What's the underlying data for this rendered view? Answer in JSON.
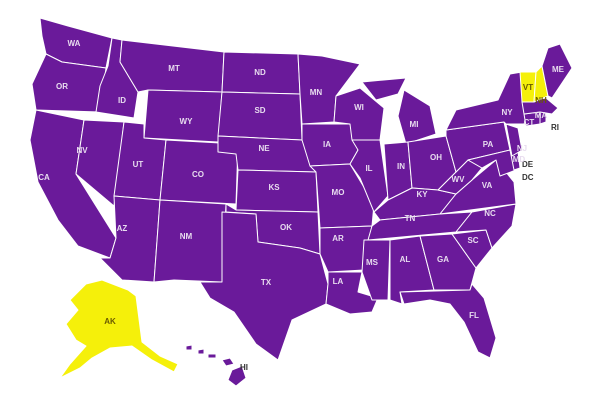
{
  "colors": {
    "default": "#6a1a9a",
    "highlight": "#f5f00a",
    "border": "#ffffff"
  },
  "highlighted": [
    "AK",
    "VT",
    "NH"
  ],
  "labels": {
    "WA": "WA",
    "OR": "OR",
    "CA": "CA",
    "ID": "ID",
    "NV": "NV",
    "MT": "MT",
    "WY": "WY",
    "UT": "UT",
    "AZ": "AZ",
    "CO": "CO",
    "NM": "NM",
    "ND": "ND",
    "SD": "SD",
    "NE": "NE",
    "KS": "KS",
    "OK": "OK",
    "TX": "TX",
    "MN": "MN",
    "IA": "IA",
    "MO": "MO",
    "AR": "AR",
    "LA": "LA",
    "WI": "WI",
    "IL": "IL",
    "MS": "MS",
    "MI": "MI",
    "IN": "IN",
    "KY": "KY",
    "TN": "TN",
    "AL": "AL",
    "OH": "OH",
    "GA": "GA",
    "FL": "FL",
    "SC": "SC",
    "NC": "NC",
    "VA": "VA",
    "WV": "WV",
    "PA": "PA",
    "NY": "NY",
    "VT": "VT",
    "NH": "NH",
    "ME": "ME",
    "MA": "MA",
    "CT": "CT",
    "RI": "RI",
    "NJ": "NJ",
    "DE": "DE",
    "MD": "MD",
    "DC": "DC",
    "AK": "AK",
    "HI": "HI"
  }
}
